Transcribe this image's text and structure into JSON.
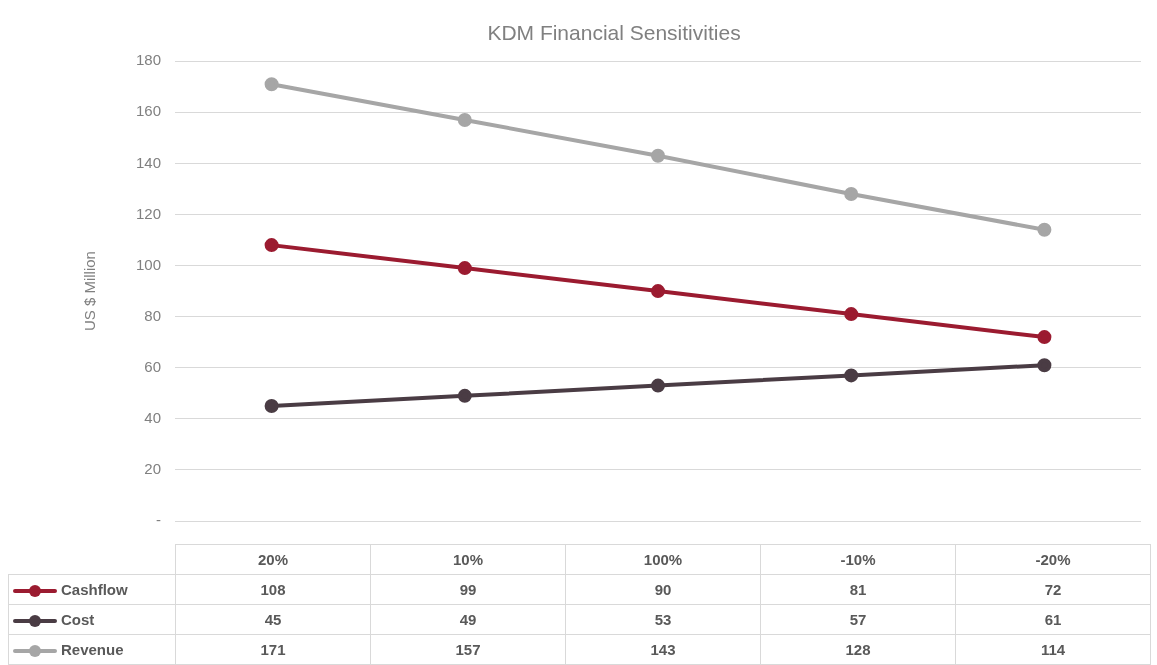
{
  "chart_data": {
    "type": "line",
    "title": "KDM Financial Sensitivities",
    "ylabel": "US $ Million",
    "categories": [
      "20%",
      "10%",
      "100%",
      "-10%",
      "-20%"
    ],
    "series": [
      {
        "name": "Cashflow",
        "color": "#9b1b30",
        "values": [
          108,
          99,
          90,
          81,
          72
        ]
      },
      {
        "name": "Cost",
        "color": "#4a3c44",
        "values": [
          45,
          49,
          53,
          57,
          61
        ]
      },
      {
        "name": "Revenue",
        "color": "#a6a6a6",
        "values": [
          171,
          157,
          143,
          128,
          114
        ]
      }
    ],
    "ylim": [
      0,
      180
    ],
    "yticks": [
      {
        "value": 0,
        "label": "-"
      },
      20,
      40,
      60,
      80,
      100,
      120,
      140,
      160,
      180
    ],
    "grid": "y",
    "legend": "bottom",
    "marker": "circle",
    "line_style": "solid",
    "data_labels": true
  }
}
